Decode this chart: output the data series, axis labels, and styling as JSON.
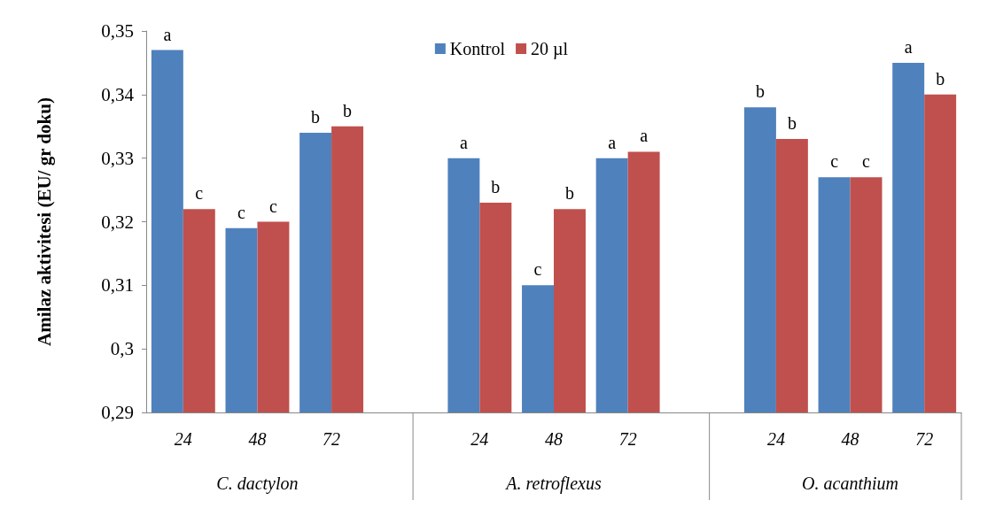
{
  "chart_data": {
    "type": "bar",
    "ylabel": "Amilaz aktivitesi (EU/ gr doku)",
    "categories": [
      "24",
      "48",
      "72",
      null,
      "24",
      "48",
      "72",
      null,
      "24",
      "48",
      "72"
    ],
    "series": [
      {
        "name": "Kontrol",
        "color": "#4f81bd",
        "values": [
          0.347,
          0.319,
          0.334,
          null,
          0.33,
          0.31,
          0.33,
          null,
          0.338,
          0.327,
          0.345
        ],
        "value_labels": [
          "a",
          "c",
          "b",
          null,
          "a",
          "c",
          "a",
          null,
          "b",
          "c",
          "a"
        ]
      },
      {
        "name": "20 µl",
        "color": "#c0504d",
        "values": [
          0.322,
          0.32,
          0.335,
          null,
          0.323,
          0.322,
          0.331,
          null,
          0.333,
          0.327,
          0.34
        ],
        "value_labels": [
          "c",
          "c",
          "b",
          null,
          "b",
          "b",
          "a",
          null,
          "b",
          "c",
          "b"
        ]
      }
    ],
    "annotations": [
      "C. dactylon",
      "A. retroflexus",
      "O. acanthium"
    ],
    "ylim": [
      0.29,
      0.35
    ],
    "yticks": [
      {
        "value": 0.29,
        "label": "0,29"
      },
      {
        "value": 0.3,
        "label": "0,3"
      },
      {
        "value": 0.31,
        "label": "0,31"
      },
      {
        "value": 0.32,
        "label": "0,32"
      },
      {
        "value": 0.33,
        "label": "0,33"
      },
      {
        "value": 0.34,
        "label": "0,34"
      },
      {
        "value": 0.35,
        "label": "0,35"
      }
    ],
    "grid": false,
    "legend": "top"
  }
}
